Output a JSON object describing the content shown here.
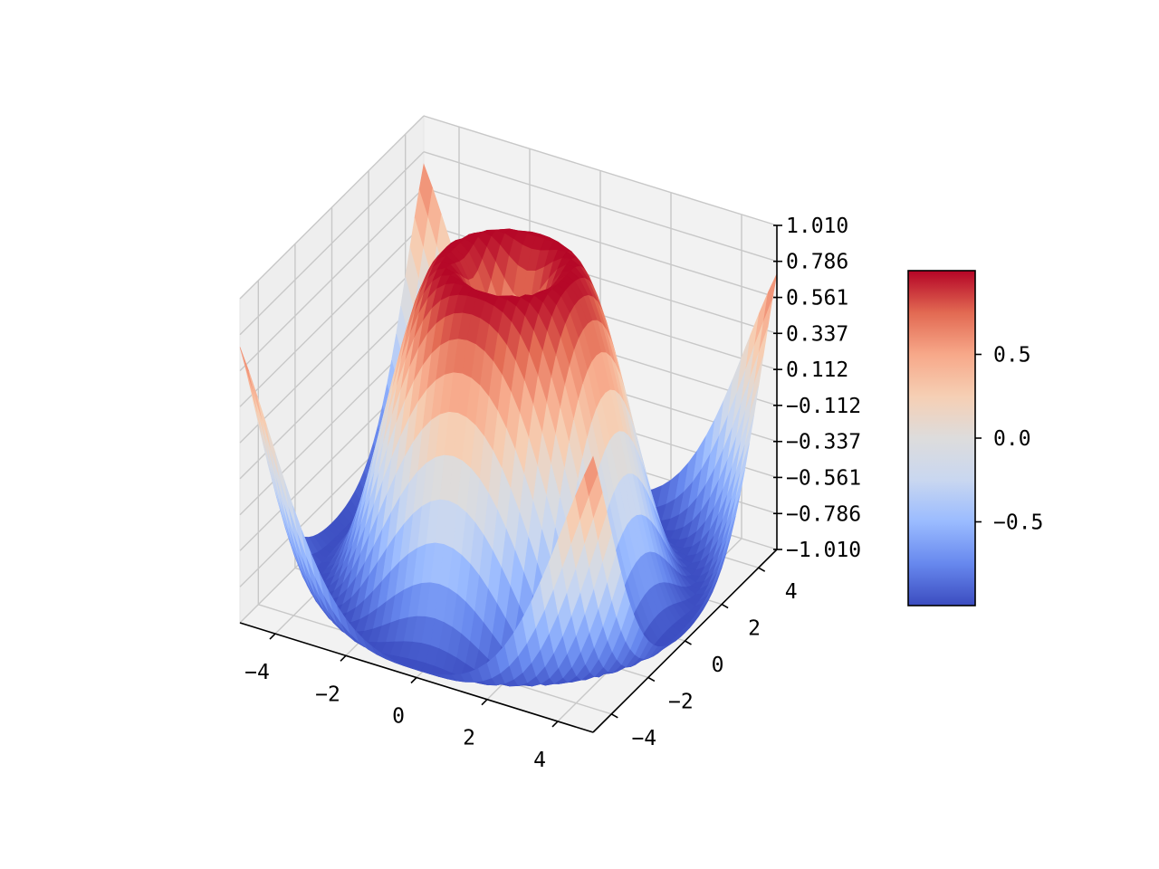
{
  "chart_data": {
    "type": "surface",
    "function": "z = sin(sqrt(x^2 + y^2))",
    "colormap": "coolwarm",
    "colormap_stops": [
      "#3b4cc0",
      "#6788ee",
      "#9abbff",
      "#c9d7f0",
      "#dddcdc",
      "#f6cfb4",
      "#f7a889",
      "#e26952",
      "#b40426"
    ],
    "x": {
      "range": [
        -5,
        5
      ],
      "step": 0.25,
      "ticks": [
        "−4",
        "−2",
        "0",
        "2",
        "4"
      ],
      "tick_values": [
        -4,
        -2,
        0,
        2,
        4
      ]
    },
    "y": {
      "range": [
        -5,
        5
      ],
      "step": 0.25,
      "ticks": [
        "−4",
        "−2",
        "0",
        "2",
        "4"
      ],
      "tick_values": [
        -4,
        -2,
        0,
        2,
        4
      ]
    },
    "z": {
      "range": [
        -1.01,
        1.01
      ],
      "ticks": [
        "1.010",
        "0.786",
        "0.561",
        "0.337",
        "0.112",
        "−0.112",
        "−0.337",
        "−0.561",
        "−0.786",
        "−1.010"
      ],
      "tick_values": [
        1.01,
        0.786,
        0.561,
        0.337,
        0.112,
        -0.112,
        -0.337,
        -0.561,
        -0.786,
        -1.01
      ]
    },
    "colorbar": {
      "range": [
        -1,
        1
      ],
      "ticks": [
        "0.5",
        "0.0",
        "−0.5"
      ],
      "tick_values": [
        0.5,
        0.0,
        -0.5
      ]
    },
    "grid": true,
    "pane_color": "#f2f2f2"
  }
}
